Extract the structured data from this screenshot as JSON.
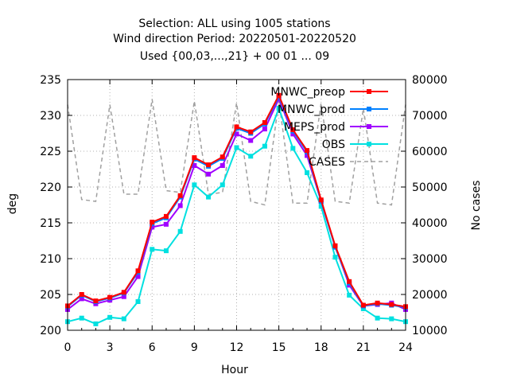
{
  "chart_data": {
    "type": "line",
    "title_lines": [
      "Selection: ALL using  1005 stations",
      "Wind direction   Period: 20220501-20220520",
      "Used {00,03,...,21} + 00 01 ... 09"
    ],
    "xlabel": "Hour",
    "ylabel": "deg",
    "y2label": "No cases",
    "xlim": [
      0,
      24
    ],
    "ylim": [
      200,
      235
    ],
    "y2lim": [
      10000,
      80000
    ],
    "xticks": [
      0,
      3,
      6,
      9,
      12,
      15,
      18,
      21,
      24
    ],
    "yticks": [
      200,
      205,
      210,
      215,
      220,
      225,
      230,
      235
    ],
    "y2ticks": [
      10000,
      20000,
      30000,
      40000,
      50000,
      60000,
      70000,
      80000
    ],
    "x": [
      0,
      1,
      2,
      3,
      4,
      5,
      6,
      7,
      8,
      9,
      10,
      11,
      12,
      13,
      14,
      15,
      16,
      17,
      18,
      19,
      20,
      21,
      22,
      23,
      24
    ],
    "grid": true,
    "legend_position": "top-right",
    "series": [
      {
        "name": "MNWC_preop",
        "color": "#ff0000",
        "axis": "y",
        "values": [
          203.4,
          205.0,
          204.1,
          204.6,
          205.3,
          208.3,
          215.1,
          215.9,
          218.8,
          224.1,
          223.1,
          224.2,
          228.4,
          227.7,
          229.0,
          232.8,
          228.0,
          225.1,
          218.2,
          211.8,
          206.8,
          203.5,
          203.8,
          203.6,
          203.3
        ]
      },
      {
        "name": "MNWC_prod",
        "color": "#0080ff",
        "axis": "y",
        "values": [
          203.3,
          204.9,
          204.0,
          204.5,
          205.2,
          208.1,
          214.9,
          215.7,
          218.6,
          223.9,
          222.9,
          224.0,
          228.2,
          227.5,
          228.8,
          232.6,
          227.8,
          224.9,
          218.0,
          211.6,
          206.6,
          203.4,
          203.7,
          203.5,
          203.2
        ]
      },
      {
        "name": "MEPS_prod",
        "color": "#a000ff",
        "axis": "y",
        "values": [
          202.9,
          204.4,
          203.7,
          204.2,
          204.7,
          207.5,
          214.4,
          214.8,
          217.4,
          223.0,
          221.8,
          223.0,
          227.4,
          226.5,
          228.1,
          232.3,
          227.4,
          224.4,
          218.0,
          211.7,
          206.3,
          203.4,
          203.6,
          203.8,
          202.9
        ]
      },
      {
        "name": "OBS",
        "color": "#00e0e0",
        "axis": "y",
        "values": [
          201.2,
          201.7,
          200.9,
          201.8,
          201.6,
          204.0,
          211.3,
          211.1,
          213.8,
          220.3,
          218.6,
          220.3,
          225.5,
          224.3,
          225.7,
          231.0,
          225.4,
          222.0,
          217.3,
          210.2,
          204.9,
          203.0,
          201.7,
          201.6,
          201.2
        ]
      },
      {
        "name": "CASES",
        "color": "#a0a0a0",
        "axis": "y2",
        "dashed": true,
        "values": [
          73000,
          46500,
          46000,
          73000,
          48000,
          48000,
          74500,
          49000,
          48500,
          74000,
          48000,
          48500,
          73500,
          46000,
          45000,
          74000,
          45500,
          45500,
          73500,
          46000,
          45500,
          72000,
          45500,
          45000,
          73000
        ]
      }
    ]
  }
}
